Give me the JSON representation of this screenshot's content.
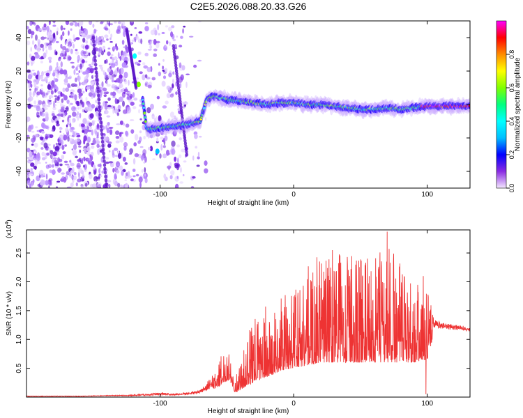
{
  "figure_title": "C2E5.2026.088.20.33.G26",
  "chart_data": [
    {
      "type": "heatmap",
      "title": "C2E5.2026.088.20.33.G26",
      "xlabel": "Height of straight line (km)",
      "ylabel": "Frequency (Hz)",
      "xlim": [
        -200,
        132
      ],
      "ylim": [
        -50,
        50
      ],
      "x_ticks": [
        -100,
        0,
        100
      ],
      "x_tick_labels": [
        "-100",
        "0",
        "100"
      ],
      "y_ticks": [
        -40,
        -20,
        0,
        20,
        40
      ],
      "y_tick_labels": [
        "-40",
        "-20",
        "0",
        "20",
        "40"
      ],
      "colorbar": {
        "label": "Normalized spectral amplitude",
        "range": [
          0,
          1
        ],
        "ticks": [
          0.0,
          0.2,
          0.4,
          0.6,
          0.8
        ],
        "tick_labels": [
          "0.0",
          "0.2",
          "0.4",
          "0.6",
          "0.8"
        ],
        "colormap": [
          "#f4e8ff",
          "#8a2be2",
          "#0000ff",
          "#00bfff",
          "#00ffff",
          "#00ff7f",
          "#7fff00",
          "#ffff00",
          "#ff8c00",
          "#ff0000",
          "#ff00ff"
        ]
      },
      "trace": {
        "x": [
          -125,
          -115,
          -110,
          -100,
          -90,
          -80,
          -75,
          -70,
          -65,
          -60,
          -50,
          -40,
          -30,
          -20,
          -10,
          0,
          10,
          20,
          30,
          40,
          50,
          60,
          70,
          80,
          90,
          100,
          110,
          120,
          132
        ],
        "y": [
          28,
          15,
          -15,
          -14,
          -13,
          -12,
          -11,
          -10,
          3,
          5,
          3,
          2,
          1,
          0,
          1,
          1,
          0,
          0,
          -1,
          -2,
          -3,
          -3,
          -2,
          -3,
          -2,
          -1,
          -1,
          -1,
          -1
        ]
      }
    },
    {
      "type": "line",
      "xlabel": "Height of straight line (km)",
      "ylabel": "SNR (10 * v/v)",
      "y_multiplier_label": "(x10",
      "y_multiplier_exp": "4",
      "xlim": [
        -200,
        132
      ],
      "ylim": [
        0,
        2.9
      ],
      "x_ticks": [
        -100,
        0,
        100
      ],
      "x_tick_labels": [
        "-100",
        "0",
        "100"
      ],
      "y_ticks": [
        0.5,
        1.0,
        1.5,
        2.0,
        2.5
      ],
      "y_tick_labels": [
        "0.5",
        "1.0",
        "1.5",
        "2.0",
        "2.5"
      ],
      "series": [
        {
          "name": "SNR",
          "color": "#ee3333",
          "envelope_x": [
            -200,
            -180,
            -160,
            -140,
            -120,
            -100,
            -90,
            -80,
            -70,
            -60,
            -52,
            -48,
            -44,
            -40,
            -35,
            -30,
            -25,
            -20,
            -10,
            0,
            10,
            20,
            30,
            40,
            50,
            60,
            70,
            80,
            90,
            100,
            105,
            110,
            115,
            120,
            125,
            132
          ],
          "envelope_base": [
            0.01,
            0.01,
            0.01,
            0.02,
            0.02,
            0.03,
            0.03,
            0.04,
            0.06,
            0.12,
            0.25,
            0.3,
            0.08,
            0.12,
            0.2,
            0.25,
            0.3,
            0.35,
            0.45,
            0.5,
            0.55,
            0.6,
            0.6,
            0.6,
            0.6,
            0.6,
            0.6,
            0.6,
            0.6,
            0.65,
            1.1,
            1.1,
            1.1,
            1.1,
            1.1,
            1.1
          ],
          "envelope_peak": [
            0.02,
            0.02,
            0.02,
            0.03,
            0.04,
            0.08,
            0.06,
            0.08,
            0.12,
            0.4,
            0.85,
            0.95,
            0.3,
            0.6,
            1.0,
            1.4,
            1.5,
            1.3,
            1.7,
            2.0,
            2.3,
            2.5,
            2.6,
            2.55,
            2.5,
            2.4,
            2.8,
            2.3,
            2.1,
            2.0,
            1.35,
            1.3,
            1.28,
            1.25,
            1.25,
            1.2
          ],
          "spikes": [
            {
              "x": -21,
              "y": 1.57
            },
            {
              "x": 29,
              "y": 2.55
            },
            {
              "x": 70,
              "y": 2.87
            },
            {
              "x": 97,
              "y": 2.1
            },
            {
              "x": 99,
              "y": 0.05
            }
          ]
        }
      ]
    }
  ]
}
